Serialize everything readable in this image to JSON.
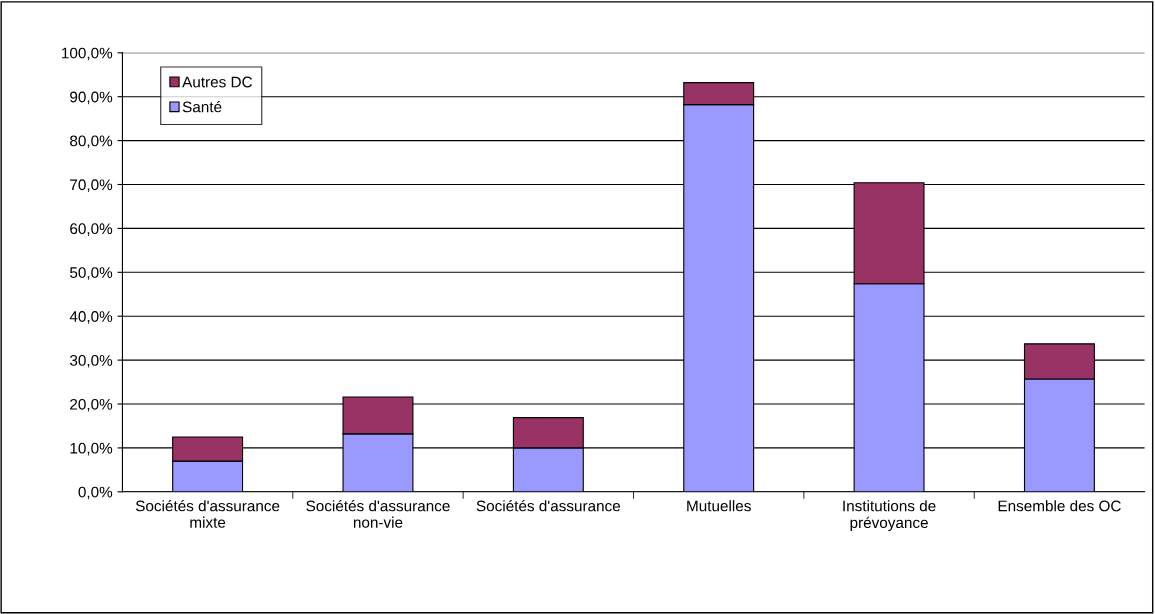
{
  "chart_data": {
    "type": "bar",
    "stacked": true,
    "categories": [
      "Sociétés d'assurance mixte",
      "Sociétés d'assurance non-vie",
      "Sociétés d'assurance",
      "Mutuelles",
      "Institutions de prévoyance",
      "Ensemble des OC"
    ],
    "series": [
      {
        "name": "Santé",
        "color": "#9999ff",
        "values": [
          7.0,
          13.2,
          10.0,
          88.2,
          47.4,
          25.7
        ]
      },
      {
        "name": "Autres DC",
        "color": "#993366",
        "values": [
          5.5,
          8.4,
          6.9,
          5.0,
          23.0,
          8.0
        ]
      }
    ],
    "ylim": [
      0,
      100
    ],
    "yticks": [
      {
        "value": 0,
        "label": "0,0%"
      },
      {
        "value": 10,
        "label": "10,0%"
      },
      {
        "value": 20,
        "label": "20,0%"
      },
      {
        "value": 30,
        "label": "30,0%"
      },
      {
        "value": 40,
        "label": "40,0%"
      },
      {
        "value": 50,
        "label": "50,0%"
      },
      {
        "value": 60,
        "label": "60,0%"
      },
      {
        "value": 70,
        "label": "70,0%"
      },
      {
        "value": 80,
        "label": "80,0%"
      },
      {
        "value": 90,
        "label": "90,0%"
      },
      {
        "value": 100,
        "label": "100,0%"
      }
    ],
    "grid": "y",
    "legend": "top left"
  }
}
